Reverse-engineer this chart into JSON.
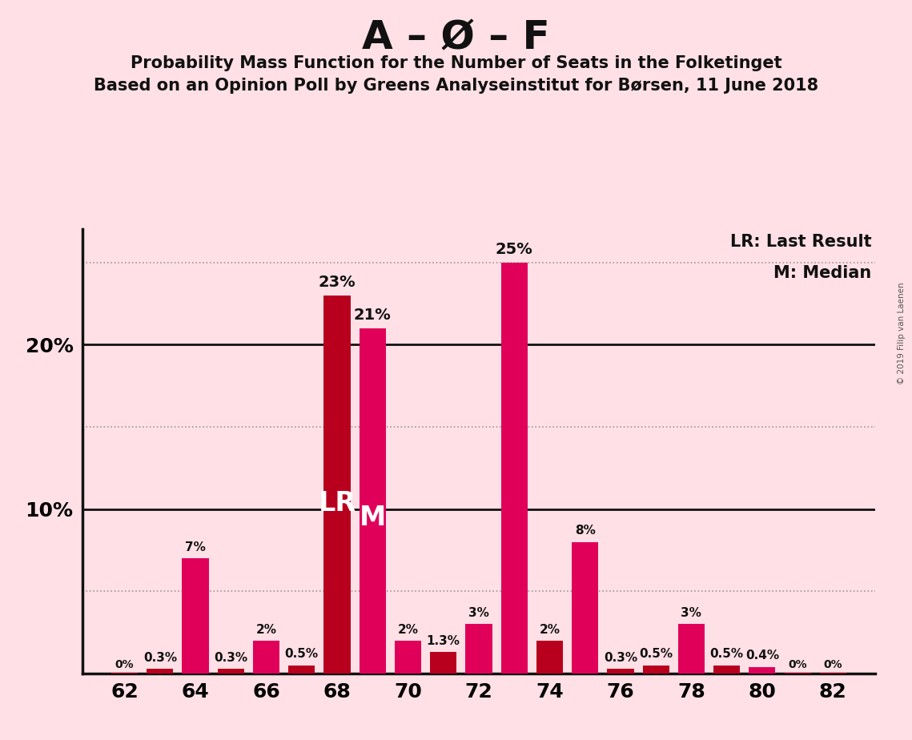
{
  "title": "A – Ø – F",
  "subtitle1": "Probability Mass Function for the Number of Seats in the Folketinget",
  "subtitle2": "Based on an Opinion Poll by Greens Analyseinstitut for Børsen, 11 June 2018",
  "copyright": "© 2019 Filip van Laenen",
  "legend_lr": "LR: Last Result",
  "legend_m": "M: Median",
  "background_color": "#FFE0E6",
  "bar_color_dark": "#B8001E",
  "bar_color_pink": "#E0005A",
  "grid_color": "#999999",
  "axis_color": "#111111",
  "seats": [
    62,
    63,
    64,
    65,
    66,
    67,
    68,
    69,
    70,
    71,
    72,
    73,
    74,
    75,
    76,
    77,
    78,
    79,
    80,
    81,
    82
  ],
  "values": [
    0.05,
    0.3,
    7.0,
    0.3,
    2.0,
    0.5,
    23.0,
    21.0,
    2.0,
    1.3,
    3.0,
    25.0,
    2.0,
    8.0,
    0.3,
    0.5,
    3.0,
    0.5,
    0.4,
    0.05,
    0.05
  ],
  "bar_colors": [
    "#B8001E",
    "#B8001E",
    "#E0005A",
    "#B8001E",
    "#E0005A",
    "#B8001E",
    "#B8001E",
    "#E0005A",
    "#E0005A",
    "#B8001E",
    "#E0005A",
    "#E0005A",
    "#B8001E",
    "#E0005A",
    "#B8001E",
    "#B8001E",
    "#E0005A",
    "#B8001E",
    "#E0005A",
    "#B8001E",
    "#B8001E"
  ],
  "labels": [
    "0%",
    "0.3%",
    "7%",
    "0.3%",
    "2%",
    "0.5%",
    "23%",
    "21%",
    "2%",
    "1.3%",
    "3%",
    "25%",
    "2%",
    "8%",
    "0.3%",
    "0.5%",
    "3%",
    "0.5%",
    "0.4%",
    "0%",
    "0%"
  ],
  "show_zero": [
    true,
    false,
    false,
    false,
    false,
    false,
    false,
    false,
    false,
    false,
    false,
    false,
    false,
    false,
    false,
    false,
    false,
    false,
    false,
    true,
    true
  ],
  "lr_seat": 68,
  "median_seat": 69,
  "ylim": [
    0,
    27
  ],
  "ytick_positions": [
    10,
    20
  ],
  "ytick_labels": [
    "10%",
    "20%"
  ],
  "solid_lines": [
    10,
    20
  ],
  "dotted_lines": [
    5,
    15,
    25
  ],
  "xticks": [
    62,
    64,
    66,
    68,
    70,
    72,
    74,
    76,
    78,
    80,
    82
  ],
  "bar_width": 0.75
}
